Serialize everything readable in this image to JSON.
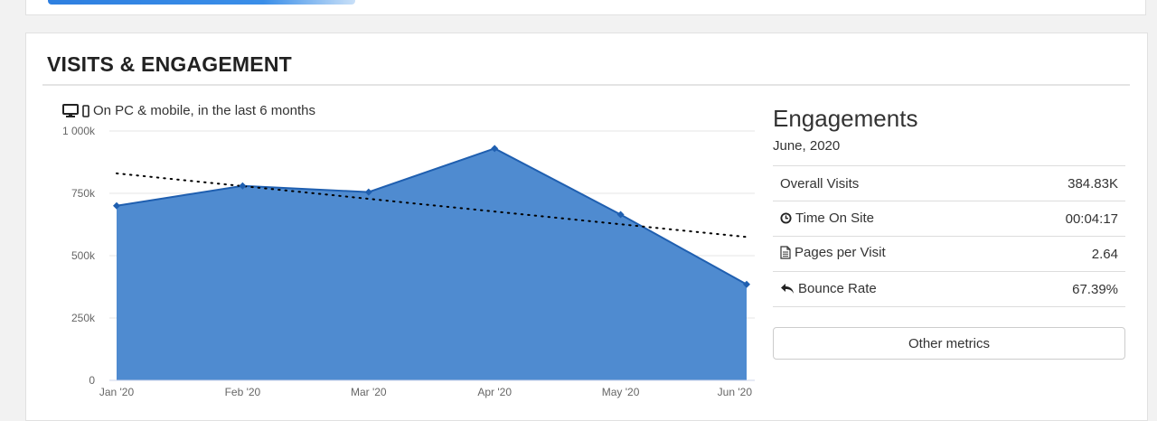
{
  "section": {
    "title": "VISITS & ENGAGEMENT"
  },
  "chart_caption": "On PC & mobile, in the last 6 months",
  "icons": {
    "caption": [
      "desktop-icon",
      "mobile-icon"
    ],
    "time_on_site": "clock-icon",
    "pages_per_visit": "document-icon",
    "bounce_rate": "reply-arrow-icon"
  },
  "colors": {
    "area_fill": "#4f8bd0",
    "line": "#1f5fb0",
    "trend": "#000000"
  },
  "chart_data": {
    "type": "area",
    "categories": [
      "Jan '20",
      "Feb '20",
      "Mar '20",
      "Apr '20",
      "May '20",
      "Jun '20"
    ],
    "series": [
      {
        "values": [
          700000,
          780000,
          755000,
          930000,
          665000,
          384830
        ]
      }
    ],
    "trendline": {
      "start": 830000,
      "end": 575000
    },
    "yticks": [
      "0",
      "250k",
      "500k",
      "750k",
      "1 000k"
    ],
    "ytick_values": [
      0,
      250000,
      500000,
      750000,
      1000000
    ],
    "ylim": [
      0,
      1000000
    ],
    "grid": true,
    "legend": "none"
  },
  "engagements": {
    "title": "Engagements",
    "date": "June, 2020",
    "metrics": [
      {
        "label": "Overall Visits",
        "value": "384.83K"
      },
      {
        "label": "Time On Site",
        "value": "00:04:17"
      },
      {
        "label": "Pages per Visit",
        "value": "2.64"
      },
      {
        "label": "Bounce Rate",
        "value": "67.39%"
      }
    ],
    "button_label": "Other metrics"
  }
}
